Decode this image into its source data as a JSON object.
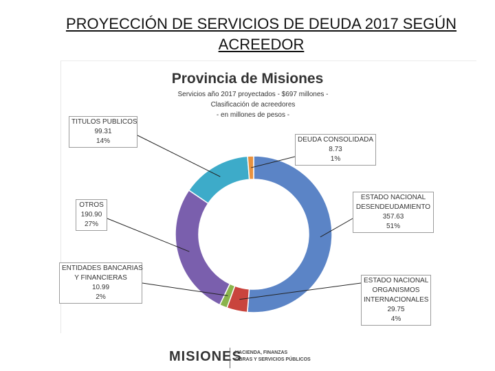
{
  "slide": {
    "title_line1": "PROYECCIÓN DE SERVICIOS DE DEUDA 2017 SEGÚN",
    "title_line2": "ACREEDOR"
  },
  "chart_data": {
    "type": "pie",
    "variant": "donut",
    "title": "Provincia de Misiones",
    "subtitle_lines": [
      "Servicios año 2017 proyectados - $697 millones -",
      "Clasificación de acreedores",
      "- en millones de pesos -"
    ],
    "slices": [
      {
        "name_lines": [
          "ESTADO NACIONAL",
          "DESENDEUDAMIENTO"
        ],
        "value": 357.63,
        "value_label": "357.63",
        "percent_label": "51%",
        "color": "#5b84c6"
      },
      {
        "name_lines": [
          "ESTADO NACIONAL",
          "ORGANISMOS",
          "INTERNACIONALES"
        ],
        "value": 29.75,
        "value_label": "29.75",
        "percent_label": "4%",
        "color": "#c9443d"
      },
      {
        "name_lines": [
          "ENTIDADES BANCARIAS",
          "Y FINANCIERAS"
        ],
        "value": 10.99,
        "value_label": "10.99",
        "percent_label": "2%",
        "color": "#8ab44c"
      },
      {
        "name_lines": [
          "OTROS"
        ],
        "value": 190.9,
        "value_label": "190.90",
        "percent_label": "27%",
        "color": "#7a5fad"
      },
      {
        "name_lines": [
          "TITULOS PUBLICOS"
        ],
        "value": 99.31,
        "value_label": "99.31",
        "percent_label": "14%",
        "color": "#3dabc9"
      },
      {
        "name_lines": [
          "DEUDA CONSOLIDADA"
        ],
        "value": 8.73,
        "value_label": "8.73",
        "percent_label": "1%",
        "color": "#e8923f"
      }
    ]
  },
  "footer": {
    "logo_text": "MISIONES",
    "logo_subtitle_lines": [
      "HACIENDA, FINANZAS",
      "OBRAS Y SERVICIOS PÚBLICOS"
    ]
  }
}
